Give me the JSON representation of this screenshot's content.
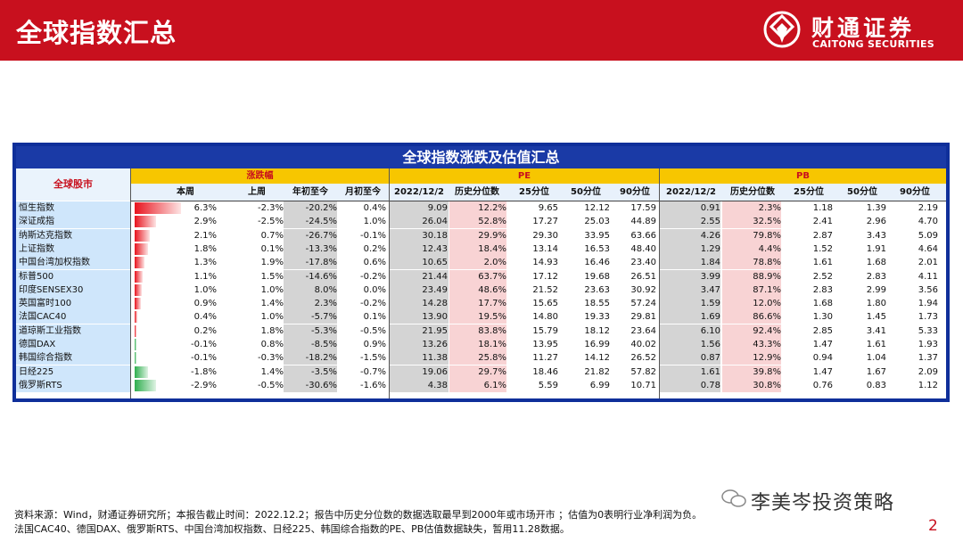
{
  "header": {
    "title": "全球指数汇总",
    "logo_cn": "财通证券",
    "logo_en": "CAITONG SECURITIES"
  },
  "table": {
    "title": "全球指数涨跌及估值汇总",
    "row_header": "全球股市",
    "groups": {
      "change": "涨跌幅",
      "pe": "PE",
      "pb": "PB"
    },
    "change_cols": [
      "本周",
      "上周",
      "年初至今",
      "月初至今"
    ],
    "pe_cols": [
      "2022/12/2",
      "历史分位数",
      "25分位",
      "50分位",
      "90分位"
    ],
    "pb_cols": [
      "2022/12/2",
      "历史分位数",
      "25分位",
      "50分位",
      "90分位"
    ],
    "colors": {
      "pos_bar": "#e8131d",
      "neg_bar": "#2fae4e",
      "name_bg": "#cfe6fb",
      "shade": "#d4d4d4",
      "pct_shade": "#f8d3d4"
    },
    "rows": [
      {
        "name": "恒生指数",
        "week": "6.3%",
        "lastweek": "-2.3%",
        "ytd": "-20.2%",
        "mtd": "0.4%",
        "pe": "9.09",
        "pe_pct": "12.2%",
        "pe25": "9.65",
        "pe50": "12.12",
        "pe90": "17.59",
        "pb": "0.91",
        "pb_pct": "2.3%",
        "pb25": "1.18",
        "pb50": "1.39",
        "pb90": "2.19",
        "w": 6.3
      },
      {
        "name": "深证成指",
        "week": "2.9%",
        "lastweek": "-2.5%",
        "ytd": "-24.5%",
        "mtd": "1.0%",
        "pe": "26.04",
        "pe_pct": "52.8%",
        "pe25": "17.27",
        "pe50": "25.03",
        "pe90": "44.89",
        "pb": "2.55",
        "pb_pct": "32.5%",
        "pb25": "2.41",
        "pb50": "2.96",
        "pb90": "4.70",
        "w": 2.9
      },
      {
        "name": "纳斯达克指数",
        "week": "2.1%",
        "lastweek": "0.7%",
        "ytd": "-26.7%",
        "mtd": "-0.1%",
        "pe": "30.18",
        "pe_pct": "29.9%",
        "pe25": "29.30",
        "pe50": "33.95",
        "pe90": "63.66",
        "pb": "4.26",
        "pb_pct": "79.8%",
        "pb25": "2.87",
        "pb50": "3.43",
        "pb90": "5.09",
        "w": 2.1
      },
      {
        "name": "上证指数",
        "week": "1.8%",
        "lastweek": "0.1%",
        "ytd": "-13.3%",
        "mtd": "0.2%",
        "pe": "12.43",
        "pe_pct": "18.4%",
        "pe25": "13.14",
        "pe50": "16.53",
        "pe90": "48.40",
        "pb": "1.29",
        "pb_pct": "4.4%",
        "pb25": "1.52",
        "pb50": "1.91",
        "pb90": "4.64",
        "w": 1.8
      },
      {
        "name": "中国台湾加权指数",
        "week": "1.3%",
        "lastweek": "1.9%",
        "ytd": "-17.8%",
        "mtd": "0.6%",
        "pe": "10.65",
        "pe_pct": "2.0%",
        "pe25": "14.93",
        "pe50": "16.46",
        "pe90": "23.40",
        "pb": "1.84",
        "pb_pct": "78.8%",
        "pb25": "1.61",
        "pb50": "1.68",
        "pb90": "2.01",
        "w": 1.3
      },
      {
        "name": "标普500",
        "week": "1.1%",
        "lastweek": "1.5%",
        "ytd": "-14.6%",
        "mtd": "-0.2%",
        "pe": "21.44",
        "pe_pct": "63.7%",
        "pe25": "17.12",
        "pe50": "19.68",
        "pe90": "26.51",
        "pb": "3.99",
        "pb_pct": "88.9%",
        "pb25": "2.52",
        "pb50": "2.83",
        "pb90": "4.11",
        "w": 1.1
      },
      {
        "name": "印度SENSEX30",
        "week": "1.0%",
        "lastweek": "1.0%",
        "ytd": "8.0%",
        "mtd": "0.0%",
        "pe": "23.49",
        "pe_pct": "48.6%",
        "pe25": "21.52",
        "pe50": "23.63",
        "pe90": "30.92",
        "pb": "3.47",
        "pb_pct": "87.1%",
        "pb25": "2.83",
        "pb50": "2.99",
        "pb90": "3.56",
        "w": 1.0
      },
      {
        "name": "英国富时100",
        "week": "0.9%",
        "lastweek": "1.4%",
        "ytd": "2.3%",
        "mtd": "-0.2%",
        "pe": "14.28",
        "pe_pct": "17.7%",
        "pe25": "15.65",
        "pe50": "18.55",
        "pe90": "57.24",
        "pb": "1.59",
        "pb_pct": "12.0%",
        "pb25": "1.68",
        "pb50": "1.80",
        "pb90": "1.94",
        "w": 0.9
      },
      {
        "name": "法国CAC40",
        "week": "0.4%",
        "lastweek": "1.0%",
        "ytd": "-5.7%",
        "mtd": "0.1%",
        "pe": "13.90",
        "pe_pct": "19.5%",
        "pe25": "14.80",
        "pe50": "19.33",
        "pe90": "29.81",
        "pb": "1.69",
        "pb_pct": "86.6%",
        "pb25": "1.30",
        "pb50": "1.45",
        "pb90": "1.73",
        "w": 0.4
      },
      {
        "name": "道琼斯工业指数",
        "week": "0.2%",
        "lastweek": "1.8%",
        "ytd": "-5.3%",
        "mtd": "-0.5%",
        "pe": "21.95",
        "pe_pct": "83.8%",
        "pe25": "15.79",
        "pe50": "18.12",
        "pe90": "23.64",
        "pb": "6.10",
        "pb_pct": "92.4%",
        "pb25": "2.85",
        "pb50": "3.41",
        "pb90": "5.33",
        "w": 0.2
      },
      {
        "name": "德国DAX",
        "week": "-0.1%",
        "lastweek": "0.8%",
        "ytd": "-8.5%",
        "mtd": "0.9%",
        "pe": "13.26",
        "pe_pct": "18.1%",
        "pe25": "13.95",
        "pe50": "16.99",
        "pe90": "40.02",
        "pb": "1.56",
        "pb_pct": "43.3%",
        "pb25": "1.47",
        "pb50": "1.61",
        "pb90": "1.93",
        "w": -0.1
      },
      {
        "name": "韩国综合指数",
        "week": "-0.1%",
        "lastweek": "-0.3%",
        "ytd": "-18.2%",
        "mtd": "-1.5%",
        "pe": "11.38",
        "pe_pct": "25.8%",
        "pe25": "11.27",
        "pe50": "14.12",
        "pe90": "26.52",
        "pb": "0.87",
        "pb_pct": "12.9%",
        "pb25": "0.94",
        "pb50": "1.04",
        "pb90": "1.37",
        "w": -0.1
      },
      {
        "name": "日经225",
        "week": "-1.8%",
        "lastweek": "1.4%",
        "ytd": "-3.5%",
        "mtd": "-0.7%",
        "pe": "19.06",
        "pe_pct": "29.7%",
        "pe25": "18.46",
        "pe50": "21.82",
        "pe90": "57.82",
        "pb": "1.61",
        "pb_pct": "39.8%",
        "pb25": "1.47",
        "pb50": "1.67",
        "pb90": "2.09",
        "w": -1.8
      },
      {
        "name": "俄罗斯RTS",
        "week": "-2.9%",
        "lastweek": "-0.5%",
        "ytd": "-30.6%",
        "mtd": "-1.6%",
        "pe": "4.38",
        "pe_pct": "6.1%",
        "pe25": "5.59",
        "pe50": "6.99",
        "pe90": "10.71",
        "pb": "0.78",
        "pb_pct": "30.8%",
        "pb25": "0.76",
        "pb50": "0.83",
        "pb90": "1.12",
        "w": -2.9
      }
    ]
  },
  "footer": {
    "line1": "资料来源：Wind，财通证券研究所；本报告截止时间：2022.12.2；报告中历史分位数的数据选取最早到2000年或市场开市 ；估值为0表明行业净利润为负。",
    "line2": "法国CAC40、德国DAX、俄罗斯RTS、中国台湾加权指数、日经225、韩国综合指数的PE、PB估值数据缺失，暂用11.28数据。",
    "brand": "李美岑投资策略",
    "page": "2"
  }
}
